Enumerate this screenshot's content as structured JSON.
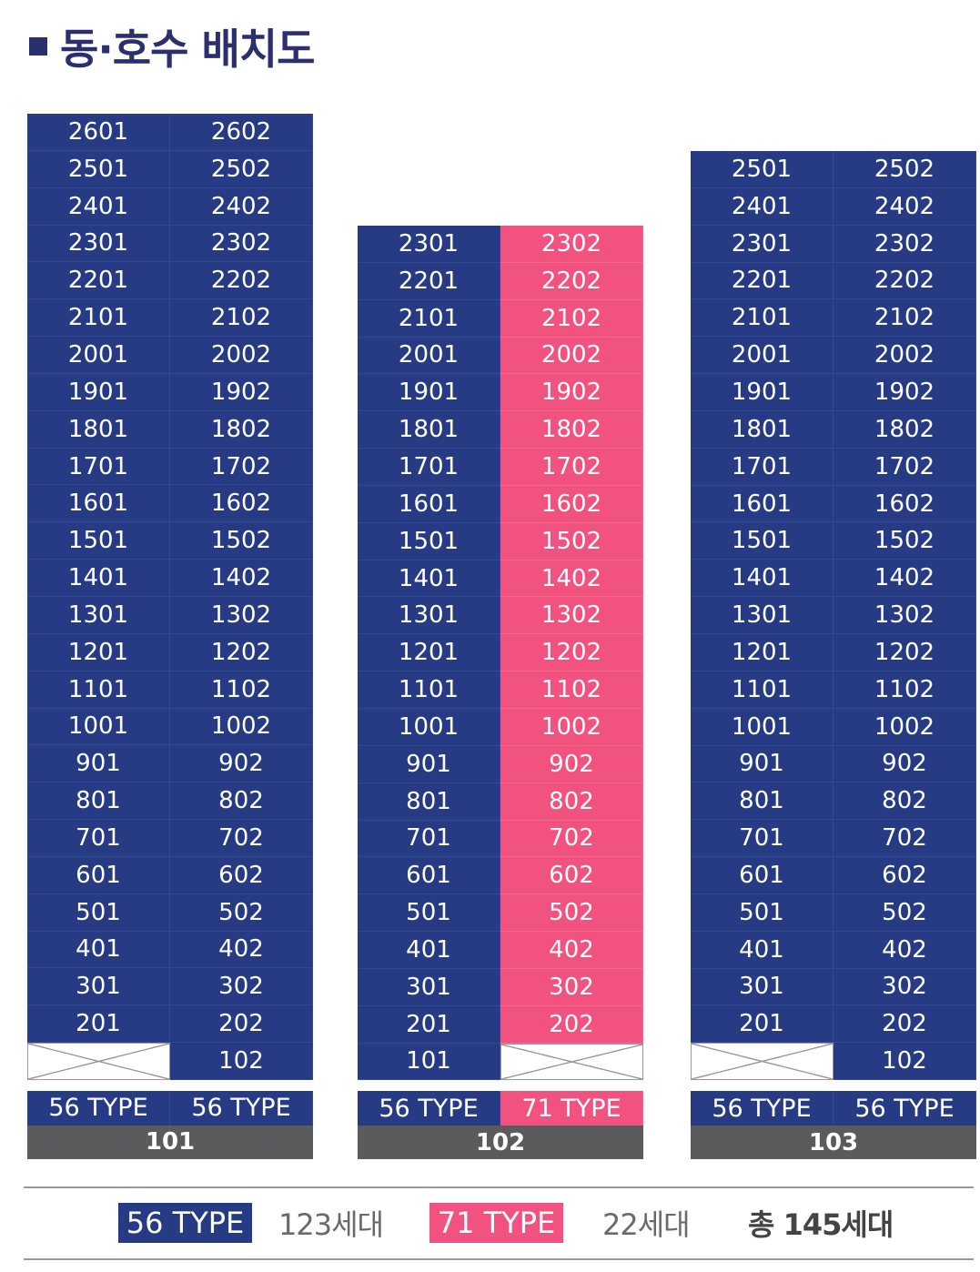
{
  "title": "동·호수 배치도",
  "colors": {
    "type56": "#263b84",
    "type71": "#f1527f",
    "label_bg": "#5b5b5d"
  },
  "buildings": [
    {
      "name": "101",
      "types": [
        "56 TYPE",
        "56 TYPE"
      ],
      "type_classes": [
        "blue",
        "blue"
      ],
      "top_floor": 26,
      "bottom_row": [
        "",
        "102"
      ],
      "col_classes": [
        "blue",
        "blue"
      ]
    },
    {
      "name": "102",
      "types": [
        "56 TYPE",
        "71 TYPE"
      ],
      "type_classes": [
        "blue",
        "pink"
      ],
      "top_floor": 23,
      "bottom_row": [
        "101",
        ""
      ],
      "col_classes": [
        "blue",
        "pink"
      ]
    },
    {
      "name": "103",
      "types": [
        "56 TYPE",
        "56 TYPE"
      ],
      "type_classes": [
        "blue",
        "blue"
      ],
      "top_floor": 25,
      "bottom_row": [
        "",
        "102"
      ],
      "col_classes": [
        "blue",
        "blue"
      ]
    }
  ],
  "legend": {
    "type56_label": "56 TYPE",
    "type56_count": "123세대",
    "type71_label": "71 TYPE",
    "type71_count": "22세대",
    "total": "총 145세대"
  }
}
